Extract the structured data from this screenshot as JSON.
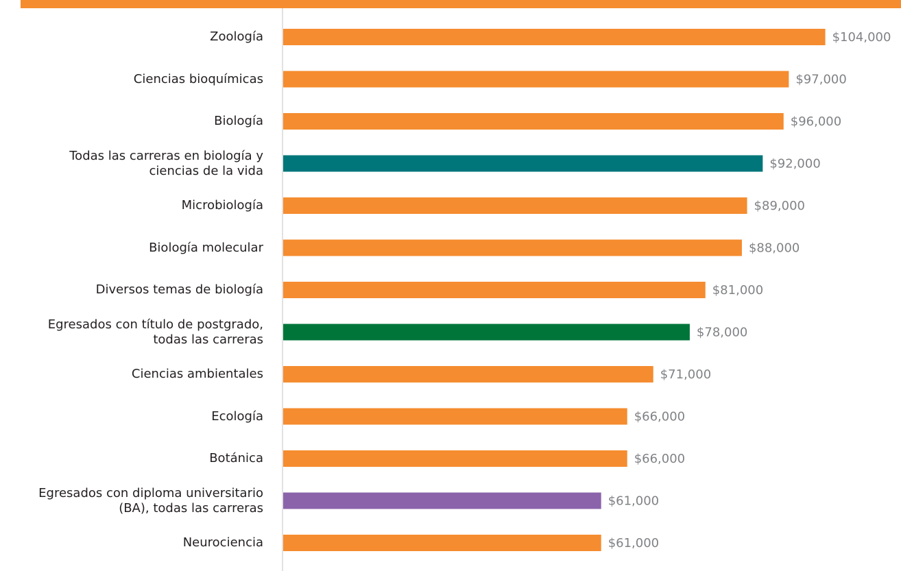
{
  "chart_data": {
    "type": "barh",
    "categories": [
      "Zoología",
      "Ciencias bioquímicas",
      "Biología",
      "Todas las carreras en biología y\nciencias de la vida",
      "Microbiología",
      "Biología molecular",
      "Diversos temas de biología",
      "Egresados con título de postgrado,\ntodas las carreras",
      "Ciencias ambientales",
      "Ecología",
      "Botánica",
      "Egresados con diploma universitario\n(BA), todas las carreras",
      "Neurociencia"
    ],
    "values": [
      104000,
      97000,
      96000,
      92000,
      89000,
      88000,
      81000,
      78000,
      71000,
      66000,
      66000,
      61000,
      61000
    ],
    "value_labels": [
      "$104,000",
      "$97,000",
      "$96,000",
      "$92,000",
      "$89,000",
      "$88,000",
      "$81,000",
      "$78,000",
      "$71,000",
      "$66,000",
      "$66,000",
      "$61,000",
      "$61,000"
    ],
    "colors": [
      "#f58c2f",
      "#f58c2f",
      "#f58c2f",
      "#00767a",
      "#f58c2f",
      "#f58c2f",
      "#f58c2f",
      "#00753a",
      "#f58c2f",
      "#f58c2f",
      "#f58c2f",
      "#8b63ab",
      "#f58c2f"
    ],
    "xlim": [
      0,
      118000
    ]
  }
}
